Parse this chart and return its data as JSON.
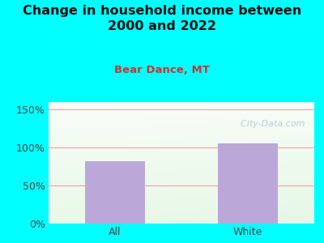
{
  "title": "Change in household income between\n2000 and 2022",
  "subtitle": "Bear Dance, MT",
  "categories": [
    "All",
    "White"
  ],
  "values": [
    82,
    106
  ],
  "bar_color": "#bba8d8",
  "title_fontsize": 11.5,
  "subtitle_fontsize": 9.5,
  "subtitle_color": "#cc3333",
  "tick_label_fontsize": 9,
  "ytick_labels": [
    "0%",
    "50%",
    "100%",
    "150%"
  ],
  "ytick_values": [
    0,
    50,
    100,
    150
  ],
  "ylim": [
    0,
    160
  ],
  "background_outer": "#00ffff",
  "grid_color": "#f0a0a0",
  "watermark": "  City-Data.com",
  "watermark_color": "#aabbcc",
  "bar_positions": [
    1,
    2
  ],
  "xlim": [
    0.5,
    2.5
  ]
}
